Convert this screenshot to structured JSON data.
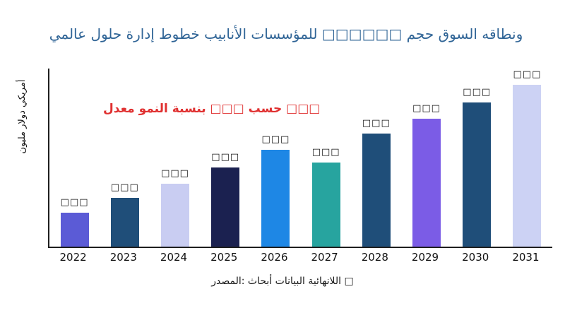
{
  "figure": {
    "background": "#ffffff"
  },
  "colors": {
    "title": "#2f6496",
    "annotation": "#e03131",
    "axis": "#1f1f1f",
    "text": "#111111"
  },
  "annotation": {
    "text": "معدل‎ النمو‎ بنسبة‎ □□□ حسب‎ □□□"
  },
  "source": {
    "text": "المصدر:‎ أبحاث‎ البيانات‎ اللانهائية‎ □"
  },
  "chart_data": {
    "type": "bar",
    "title": "عالمي‎ حلول‎ إدارة‎ خطوط‎ الأنابيب‎ للمؤسسات‎ □□□□□□ حجم‎ السوق‎ ونطاقه",
    "xlabel": "",
    "ylabel": "مليون‎ دولار‎ أمريكي",
    "categories": [
      "2022",
      "2023",
      "2024",
      "2025",
      "2026",
      "2027",
      "2028",
      "2029",
      "2030",
      "2031"
    ],
    "values": [
      21,
      30,
      39,
      49,
      60,
      52,
      70,
      79,
      89,
      100
    ],
    "value_labels": [
      "□□□",
      "□□□",
      "□□□",
      "□□□",
      "□□□",
      "□□□",
      "□□□",
      "□□□",
      "□□□",
      "□□□"
    ],
    "bar_colors": [
      "#5b5bd6",
      "#1f4e79",
      "#c9cdf2",
      "#1b2150",
      "#1e87e5",
      "#27a49f",
      "#1f4e79",
      "#7b5ce6",
      "#1f4e79",
      "#ccd2f4"
    ],
    "ylim": [
      0,
      110
    ],
    "grid": false,
    "legend": null
  }
}
